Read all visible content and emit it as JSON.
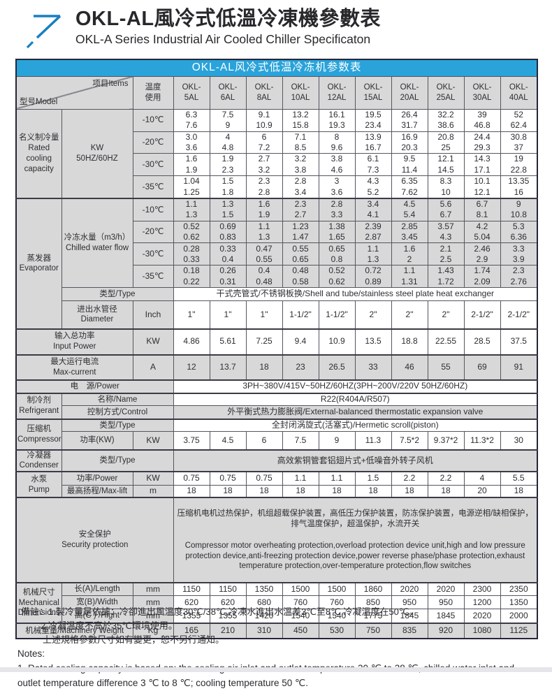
{
  "page": {
    "title_zh": "OKL-AL風冷式低溫冷凍機參數表",
    "title_en": "OKL-A Series Industrial Air Cooled Chiller Specificaton"
  },
  "colors": {
    "accent_blue": "#29a3da",
    "cell_gray": "#d8d8d8",
    "border_dark": "#26263a",
    "logo_blue": "#1a7fc0"
  },
  "table": {
    "header": "OKL-AL风冷式低温冷冻机参数表",
    "corner": {
      "model": "型号Model",
      "items": "项目Items"
    },
    "temp_header": "温度\n使用",
    "models": [
      "OKL-\n5AL",
      "OKL-\n6AL",
      "OKL-\n8AL",
      "OKL-\n10AL",
      "OKL-\n12AL",
      "OKL-\n15AL",
      "OKL-\n20AL",
      "OKL-\n25AL",
      "OKL-\n30AL",
      "OKL-\n40AL"
    ],
    "rated": {
      "label": "名义制冷量\nRated\ncooling\ncapacity",
      "unit": "KW\n50HZ/60HZ",
      "rows": [
        {
          "temp": "-10℃",
          "values": [
            "6.3\n7.6",
            "7.5\n9",
            "9.1\n10.9",
            "13.2\n15.8",
            "16.1\n19.3",
            "19.5\n23.4",
            "26.4\n31.7",
            "32.2\n38.6",
            "39\n46.8",
            "52\n62.4"
          ]
        },
        {
          "temp": "-20℃",
          "values": [
            "3.0\n3.6",
            "4\n4.8",
            "6\n7.2",
            "7.1\n8.5",
            "8\n9.6",
            "13.9\n16.7",
            "16.9\n20.3",
            "20.8\n25",
            "24.4\n29.3",
            "30.8\n37"
          ]
        },
        {
          "temp": "-30℃",
          "values": [
            "1.6\n1.9",
            "1.9\n2.3",
            "2.7\n3.2",
            "3.2\n3.8",
            "3.8\n4.6",
            "6.1\n7.3",
            "9.5\n11.4",
            "12.1\n14.5",
            "14.3\n17.1",
            "19\n22.8"
          ]
        },
        {
          "temp": "-35℃",
          "values": [
            "1.04\n1.25",
            "1.5\n1.8",
            "2.3\n2.8",
            "2.8\n3.4",
            "3\n3.6",
            "4.3\n5.2",
            "6.35\n7.62",
            "8.3\n10",
            "10.1\n12.1",
            "13.35\n16"
          ]
        }
      ]
    },
    "evaporator": {
      "label": "蒸发器\nEvaporator",
      "flow_label": "冷冻水量（m3/h）\nChilled water flow",
      "rows": [
        {
          "temp": "-10℃",
          "values": [
            "1.1\n1.3",
            "1.3\n1.5",
            "1.6\n1.9",
            "2.3\n2.7",
            "2.8\n3.3",
            "3.4\n4.1",
            "4.5\n5.4",
            "5.6\n6.7",
            "6.7\n8.1",
            "9\n10.8"
          ]
        },
        {
          "temp": "-20℃",
          "values": [
            "0.52\n0.62",
            "0.69\n0.83",
            "1.1\n1.3",
            "1.23\n1.47",
            "1.38\n1.65",
            "2.39\n2.87",
            "2.85\n3.45",
            "3.57\n4.3",
            "4.2\n5.04",
            "5.3\n6.36"
          ]
        },
        {
          "temp": "-30℃",
          "values": [
            "0.28\n0.33",
            "0.33\n0.4",
            "0.47\n0.55",
            "0.55\n0.65",
            "0.65\n0.8",
            "1.1\n1.3",
            "1.6\n2",
            "2.1\n2.5",
            "2.46\n2.9",
            "3.3\n3.9"
          ]
        },
        {
          "temp": "-35℃",
          "values": [
            "0.18\n0.22",
            "0.26\n0.31",
            "0.4\n0.48",
            "0.48\n0.58",
            "0.52\n0.62",
            "0.72\n0.89",
            "1.1\n1.31",
            "1.43\n1.72",
            "1.74\n2.09",
            "2.3\n2.76"
          ]
        }
      ],
      "type_label": "类型/Type",
      "type_value": "干式壳管式/不锈钢板换/Shell and tube/stainless steel plate heat exchanger",
      "diameter_label": "进出水管径\nDiameter",
      "diameter_unit": "Inch",
      "diameter_values": [
        "1\"",
        "1\"",
        "1\"",
        "1-1/2\"",
        "1-1/2\"",
        "2\"",
        "2\"",
        "2\"",
        "2-1/2\"",
        "2-1/2\""
      ]
    },
    "input_power": {
      "label": "输入总功率\nInput Power",
      "unit": "KW",
      "values": [
        "4.86",
        "5.61",
        "7.25",
        "9.4",
        "10.9",
        "13.5",
        "18.8",
        "22.55",
        "28.5",
        "37.5"
      ]
    },
    "max_current": {
      "label": "最大运行电流\nMax-current",
      "unit": "A",
      "values": [
        "12",
        "13.7",
        "18",
        "23",
        "26.5",
        "33",
        "46",
        "55",
        "69",
        "91"
      ]
    },
    "power_supply": {
      "label": "电　源/Power",
      "value": "3PH~380V/415V~50HZ/60HZ(3PH~200V/220V  50HZ/60HZ)"
    },
    "refrigerant": {
      "label": "制冷剂\nRefrigerant",
      "name_label": "名称/Name",
      "name_value": "R22(R404A/R507)",
      "control_label": "控制方式/Control",
      "control_value": "外平衡式热力膨胀阀/External-balanced thermostatic expansion valve"
    },
    "compressor": {
      "label": "压缩机\nCompressor",
      "type_label": "类型/Type",
      "type_value": "全封闭涡旋式(活塞式)/Hermetic scroll(piston)",
      "power_label": "功率(KW)",
      "power_unit": "KW",
      "power_values": [
        "3.75",
        "4.5",
        "6",
        "7.5",
        "9",
        "11.3",
        "7.5*2",
        "9.37*2",
        "11.3*2",
        "30"
      ]
    },
    "condenser": {
      "label": "冷凝器\nCondenser",
      "type_label": "类型/Type",
      "type_value": "高效紫铜管套铝翅片式+低噪音外转子风机"
    },
    "pump": {
      "label": "水泵\nPump",
      "power_label": "功率/Power",
      "power_unit": "KW",
      "power_values": [
        "0.75",
        "0.75",
        "0.75",
        "1.1",
        "1.1",
        "1.5",
        "2.2",
        "2.2",
        "4",
        "5.5"
      ],
      "lift_label": "最高扬程/Max-lift",
      "lift_unit": "m",
      "lift_values": [
        "18",
        "18",
        "18",
        "18",
        "18",
        "18",
        "18",
        "18",
        "20",
        "18"
      ]
    },
    "security": {
      "label": "安全保护\nSecurity protection",
      "text_zh": "压缩机电机过热保护，机组超载保护装置，高低压力保护装置，防冻保护装置，电源逆相/缺相保护，排气温度保护，超温保护，水流开关",
      "text_en": "Compressor motor overheating protection,overload protection device unit,high and low pressure protection device,anti-freezing protection device,power reverse phase/phase protection,exhaust temperature protection,over-temperature protection,flow switches"
    },
    "dimensions": {
      "label": "机械尺寸\nMechanical\nDimensions",
      "rows": [
        {
          "label": "长(A)/Length",
          "unit": "mm",
          "values": [
            "1150",
            "1150",
            "1350",
            "1500",
            "1500",
            "1860",
            "2020",
            "2020",
            "2300",
            "2350"
          ]
        },
        {
          "label": "宽(B)/Width",
          "unit": "mm",
          "values": [
            "620",
            "620",
            "680",
            "760",
            "760",
            "850",
            "950",
            "950",
            "1200",
            "1350"
          ]
        },
        {
          "label": "高(C ) /Hight",
          "unit": "mm",
          "values": [
            "1355",
            "1355",
            "1420",
            "1540",
            "1540",
            "1775",
            "1845",
            "1845",
            "2020",
            "2000"
          ]
        }
      ]
    },
    "weight": {
      "label": "机械重量/Machinery Weight",
      "unit": "Kg",
      "values": [
        "165",
        "210",
        "310",
        "450",
        "530",
        "750",
        "835",
        "920",
        "1080",
        "1125"
      ]
    }
  },
  "notes": {
    "zh1": "備註：1.製冷量是依據：冷卻進出風溫度30℃/38℃,冷凍水進出水溫差3℃至8℃,冷凝溫度在50℃。",
    "zh2": "2.冷凝溫度不高於35℃環境使用。",
    "zh3": "上述規格參數尺寸如有變更，恕不另行通知。",
    "en_label": "Notes:",
    "en1": "1. Rated cooling capacity is based on: the cooling air inlet and outlet temperature 30 ℃ to 38 ℃, chilled water inlet and outlet temperature difference 3 ℃ to 8 ℃; cooling temperature 50 ℃."
  }
}
